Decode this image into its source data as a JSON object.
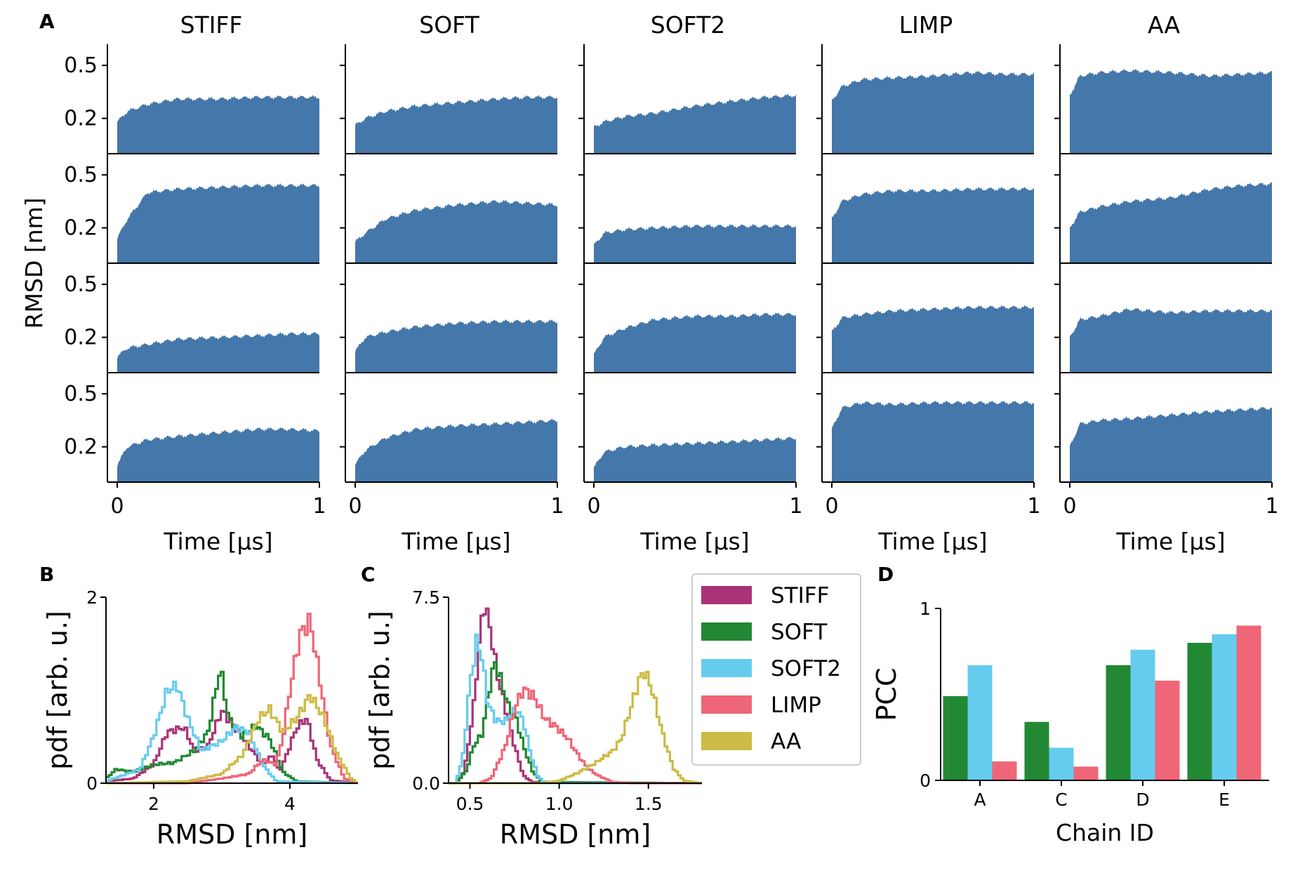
{
  "panel_labels": {
    "A": "A",
    "B": "B",
    "C": "C",
    "D": "D"
  },
  "colors": {
    "area": "#4477aa",
    "STIFF": "#aa3377",
    "SOFT": "#228833",
    "SOFT2": "#66ccee",
    "LIMP": "#ee6677",
    "AA": "#ccbb44"
  },
  "chart_data": [
    {
      "type": "area",
      "panel": "A",
      "columns": [
        "STIFF",
        "SOFT",
        "SOFT2",
        "LIMP",
        "AA"
      ],
      "rows": 4,
      "ylabel": "RMSD [nm]",
      "xlabel": "Time [μs]",
      "xlim": [
        0,
        1
      ],
      "ylim": [
        0,
        0.62
      ],
      "x_ticks": [
        "0",
        "1"
      ],
      "y_ticks": [
        "0.5",
        "0.2"
      ],
      "y_tick_values": [
        0.5,
        0.2
      ],
      "x": [
        0,
        0.05,
        0.15,
        0.3,
        0.5,
        0.7,
        0.85,
        1.0
      ],
      "series": [
        {
          "col": 0,
          "row": 0,
          "values": [
            0.18,
            0.24,
            0.28,
            0.31,
            0.31,
            0.32,
            0.32,
            0.32
          ]
        },
        {
          "col": 1,
          "row": 0,
          "values": [
            0.16,
            0.2,
            0.24,
            0.27,
            0.29,
            0.31,
            0.32,
            0.32
          ]
        },
        {
          "col": 2,
          "row": 0,
          "values": [
            0.15,
            0.18,
            0.21,
            0.23,
            0.27,
            0.3,
            0.32,
            0.33
          ]
        },
        {
          "col": 3,
          "row": 0,
          "values": [
            0.3,
            0.38,
            0.42,
            0.43,
            0.44,
            0.46,
            0.45,
            0.45
          ]
        },
        {
          "col": 4,
          "row": 0,
          "values": [
            0.33,
            0.44,
            0.46,
            0.47,
            0.46,
            0.44,
            0.45,
            0.46
          ]
        },
        {
          "col": 0,
          "row": 1,
          "values": [
            0.14,
            0.25,
            0.4,
            0.42,
            0.43,
            0.44,
            0.44,
            0.44
          ]
        },
        {
          "col": 1,
          "row": 1,
          "values": [
            0.12,
            0.17,
            0.25,
            0.3,
            0.33,
            0.35,
            0.34,
            0.33
          ]
        },
        {
          "col": 2,
          "row": 1,
          "values": [
            0.1,
            0.17,
            0.19,
            0.2,
            0.21,
            0.21,
            0.21,
            0.21
          ]
        },
        {
          "col": 3,
          "row": 1,
          "values": [
            0.25,
            0.35,
            0.39,
            0.41,
            0.41,
            0.42,
            0.42,
            0.42
          ]
        },
        {
          "col": 4,
          "row": 1,
          "values": [
            0.2,
            0.29,
            0.32,
            0.35,
            0.37,
            0.42,
            0.44,
            0.45
          ]
        },
        {
          "col": 0,
          "row": 2,
          "values": [
            0.09,
            0.14,
            0.16,
            0.19,
            0.2,
            0.21,
            0.22,
            0.22
          ]
        },
        {
          "col": 1,
          "row": 2,
          "values": [
            0.12,
            0.2,
            0.23,
            0.26,
            0.28,
            0.29,
            0.29,
            0.29
          ]
        },
        {
          "col": 2,
          "row": 2,
          "values": [
            0.1,
            0.2,
            0.25,
            0.3,
            0.32,
            0.32,
            0.33,
            0.33
          ]
        },
        {
          "col": 3,
          "row": 2,
          "values": [
            0.23,
            0.31,
            0.33,
            0.35,
            0.36,
            0.37,
            0.37,
            0.37
          ]
        },
        {
          "col": 4,
          "row": 2,
          "values": [
            0.2,
            0.3,
            0.32,
            0.36,
            0.34,
            0.35,
            0.35,
            0.35
          ]
        },
        {
          "col": 0,
          "row": 3,
          "values": [
            0.1,
            0.2,
            0.24,
            0.26,
            0.28,
            0.3,
            0.3,
            0.29
          ]
        },
        {
          "col": 1,
          "row": 3,
          "values": [
            0.1,
            0.18,
            0.25,
            0.3,
            0.32,
            0.33,
            0.34,
            0.35
          ]
        },
        {
          "col": 2,
          "row": 3,
          "values": [
            0.08,
            0.17,
            0.2,
            0.21,
            0.22,
            0.23,
            0.24,
            0.25
          ]
        },
        {
          "col": 3,
          "row": 3,
          "values": [
            0.3,
            0.42,
            0.45,
            0.44,
            0.45,
            0.45,
            0.45,
            0.45
          ]
        },
        {
          "col": 4,
          "row": 3,
          "values": [
            0.2,
            0.33,
            0.35,
            0.36,
            0.38,
            0.4,
            0.41,
            0.42
          ]
        }
      ]
    },
    {
      "type": "line",
      "panel": "B",
      "ylabel": "pdf [arb. u.]",
      "xlabel": "RMSD [nm]",
      "xlim": [
        1.3,
        5.0
      ],
      "ylim": [
        0,
        2
      ],
      "x_ticks": [
        2,
        4
      ],
      "y_ticks": [
        0,
        2
      ],
      "series": [
        {
          "name": "STIFF",
          "points": [
            [
              1.3,
              0.02
            ],
            [
              1.7,
              0.05
            ],
            [
              2.0,
              0.2
            ],
            [
              2.2,
              0.55
            ],
            [
              2.45,
              0.6
            ],
            [
              2.6,
              0.35
            ],
            [
              2.8,
              0.4
            ],
            [
              3.0,
              0.78
            ],
            [
              3.3,
              0.5
            ],
            [
              3.6,
              0.2
            ],
            [
              3.75,
              0.3
            ],
            [
              3.85,
              0.12
            ],
            [
              3.95,
              0.3
            ],
            [
              4.1,
              0.6
            ],
            [
              4.25,
              0.7
            ],
            [
              4.4,
              0.25
            ],
            [
              4.6,
              0.03
            ],
            [
              5.0,
              0.0
            ]
          ]
        },
        {
          "name": "SOFT",
          "points": [
            [
              1.3,
              0.05
            ],
            [
              1.45,
              0.15
            ],
            [
              1.7,
              0.12
            ],
            [
              2.0,
              0.2
            ],
            [
              2.3,
              0.22
            ],
            [
              2.6,
              0.35
            ],
            [
              2.8,
              0.55
            ],
            [
              2.98,
              1.25
            ],
            [
              3.1,
              0.7
            ],
            [
              3.3,
              0.5
            ],
            [
              3.5,
              0.62
            ],
            [
              3.7,
              0.48
            ],
            [
              3.9,
              0.12
            ],
            [
              4.1,
              0.02
            ],
            [
              5.0,
              0.0
            ]
          ]
        },
        {
          "name": "SOFT2",
          "points": [
            [
              1.3,
              0.02
            ],
            [
              1.8,
              0.15
            ],
            [
              2.0,
              0.5
            ],
            [
              2.2,
              1.0
            ],
            [
              2.35,
              1.05
            ],
            [
              2.5,
              0.7
            ],
            [
              2.7,
              0.35
            ],
            [
              3.0,
              0.45
            ],
            [
              3.2,
              0.6
            ],
            [
              3.4,
              0.55
            ],
            [
              3.6,
              0.2
            ],
            [
              3.8,
              0.02
            ],
            [
              5.0,
              0.0
            ]
          ]
        },
        {
          "name": "LIMP",
          "points": [
            [
              1.3,
              0.0
            ],
            [
              2.5,
              0.0
            ],
            [
              3.0,
              0.05
            ],
            [
              3.4,
              0.1
            ],
            [
              3.6,
              0.25
            ],
            [
              3.8,
              0.2
            ],
            [
              3.9,
              0.5
            ],
            [
              4.0,
              1.0
            ],
            [
              4.15,
              1.6
            ],
            [
              4.3,
              1.75
            ],
            [
              4.4,
              1.3
            ],
            [
              4.6,
              0.4
            ],
            [
              4.8,
              0.05
            ],
            [
              5.0,
              0.0
            ]
          ]
        },
        {
          "name": "AA",
          "points": [
            [
              1.3,
              0.0
            ],
            [
              2.5,
              0.02
            ],
            [
              3.0,
              0.1
            ],
            [
              3.3,
              0.3
            ],
            [
              3.55,
              0.7
            ],
            [
              3.7,
              0.8
            ],
            [
              3.9,
              0.55
            ],
            [
              4.1,
              0.7
            ],
            [
              4.3,
              0.95
            ],
            [
              4.5,
              0.7
            ],
            [
              4.7,
              0.3
            ],
            [
              4.9,
              0.05
            ],
            [
              5.0,
              0.0
            ]
          ]
        }
      ]
    },
    {
      "type": "line",
      "panel": "C",
      "ylabel": "pdf [arb. u.]",
      "xlabel": "RMSD [nm]",
      "xlim": [
        0.38,
        1.8
      ],
      "ylim": [
        0,
        7.5
      ],
      "x_ticks": [
        "0.5",
        "1.0",
        "1.5"
      ],
      "x_tick_values": [
        0.5,
        1.0,
        1.5
      ],
      "y_ticks": [
        "0.0",
        "7.5"
      ],
      "y_tick_values": [
        0.0,
        7.5
      ],
      "series": [
        {
          "name": "STIFF",
          "points": [
            [
              0.42,
              0.0
            ],
            [
              0.47,
              0.5
            ],
            [
              0.52,
              3.0
            ],
            [
              0.55,
              5.5
            ],
            [
              0.58,
              7.3
            ],
            [
              0.62,
              6.0
            ],
            [
              0.65,
              4.5
            ],
            [
              0.7,
              3.0
            ],
            [
              0.75,
              1.5
            ],
            [
              0.8,
              0.3
            ],
            [
              0.85,
              0.05
            ],
            [
              1.8,
              0.0
            ]
          ]
        },
        {
          "name": "SOFT",
          "points": [
            [
              0.42,
              0.0
            ],
            [
              0.48,
              0.5
            ],
            [
              0.52,
              1.5
            ],
            [
              0.57,
              2.0
            ],
            [
              0.6,
              3.5
            ],
            [
              0.64,
              4.9
            ],
            [
              0.68,
              4.0
            ],
            [
              0.72,
              3.0
            ],
            [
              0.76,
              2.6
            ],
            [
              0.8,
              1.5
            ],
            [
              0.85,
              0.5
            ],
            [
              0.9,
              0.05
            ],
            [
              1.8,
              0.0
            ]
          ]
        },
        {
          "name": "SOFT2",
          "points": [
            [
              0.42,
              0.0
            ],
            [
              0.46,
              1.0
            ],
            [
              0.5,
              4.0
            ],
            [
              0.54,
              5.8
            ],
            [
              0.57,
              5.0
            ],
            [
              0.6,
              3.2
            ],
            [
              0.65,
              2.5
            ],
            [
              0.7,
              2.5
            ],
            [
              0.76,
              3.0
            ],
            [
              0.8,
              2.5
            ],
            [
              0.84,
              1.2
            ],
            [
              0.88,
              0.3
            ],
            [
              0.92,
              0.0
            ],
            [
              1.8,
              0.0
            ]
          ]
        },
        {
          "name": "LIMP",
          "points": [
            [
              0.42,
              0.0
            ],
            [
              0.55,
              0.0
            ],
            [
              0.62,
              0.2
            ],
            [
              0.7,
              1.5
            ],
            [
              0.75,
              3.0
            ],
            [
              0.8,
              3.8
            ],
            [
              0.86,
              3.5
            ],
            [
              0.92,
              2.6
            ],
            [
              0.98,
              2.3
            ],
            [
              1.05,
              1.8
            ],
            [
              1.1,
              1.2
            ],
            [
              1.16,
              0.6
            ],
            [
              1.22,
              0.3
            ],
            [
              1.3,
              0.05
            ],
            [
              1.4,
              0.0
            ],
            [
              1.8,
              0.0
            ]
          ]
        },
        {
          "name": "AA",
          "points": [
            [
              0.42,
              0.0
            ],
            [
              0.9,
              0.0
            ],
            [
              1.0,
              0.1
            ],
            [
              1.1,
              0.4
            ],
            [
              1.2,
              0.8
            ],
            [
              1.3,
              1.3
            ],
            [
              1.35,
              1.8
            ],
            [
              1.4,
              3.0
            ],
            [
              1.45,
              4.2
            ],
            [
              1.48,
              4.5
            ],
            [
              1.52,
              3.8
            ],
            [
              1.58,
              2.0
            ],
            [
              1.64,
              0.6
            ],
            [
              1.7,
              0.1
            ],
            [
              1.8,
              0.0
            ]
          ]
        }
      ],
      "legend": [
        "STIFF",
        "SOFT",
        "SOFT2",
        "LIMP",
        "AA"
      ]
    },
    {
      "type": "bar",
      "panel": "D",
      "ylabel": "PCC",
      "xlabel": "Chain ID",
      "categories": [
        "A",
        "C",
        "D",
        "E"
      ],
      "ylim": [
        0,
        1.0
      ],
      "y_ticks": [
        0,
        1
      ],
      "series": [
        {
          "name": "SOFT",
          "values": [
            0.49,
            0.34,
            0.67,
            0.8
          ]
        },
        {
          "name": "SOFT2",
          "values": [
            0.67,
            0.19,
            0.76,
            0.85
          ]
        },
        {
          "name": "LIMP",
          "values": [
            0.11,
            0.08,
            0.58,
            0.9
          ]
        }
      ]
    }
  ]
}
